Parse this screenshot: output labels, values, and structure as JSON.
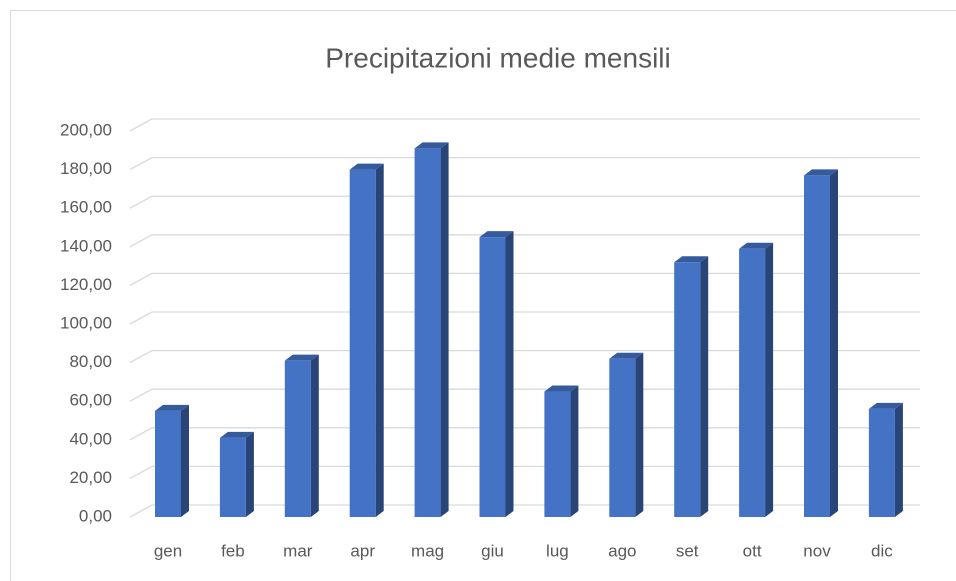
{
  "chart_data": {
    "type": "bar3d",
    "title": "Precipitazioni medie mensili",
    "categories": [
      "gen",
      "feb",
      "mar",
      "apr",
      "mag",
      "giu",
      "lug",
      "ago",
      "set",
      "ott",
      "nov",
      "dic"
    ],
    "values": [
      55,
      41,
      81,
      180,
      191,
      145,
      65,
      82,
      132,
      139,
      177,
      56
    ],
    "color": "#4472c4",
    "ylim": [
      0,
      200
    ],
    "yticks": [
      {
        "value": 0,
        "label": "0,00"
      },
      {
        "value": 20,
        "label": "20,00"
      },
      {
        "value": 40,
        "label": "40,00"
      },
      {
        "value": 60,
        "label": "60,00"
      },
      {
        "value": 80,
        "label": "80,00"
      },
      {
        "value": 100,
        "label": "100,00"
      },
      {
        "value": 120,
        "label": "120,00"
      },
      {
        "value": 140,
        "label": "140,00"
      },
      {
        "value": 160,
        "label": "160,00"
      },
      {
        "value": 180,
        "label": "180,00"
      },
      {
        "value": 200,
        "label": "200,00"
      }
    ],
    "grid": true
  }
}
